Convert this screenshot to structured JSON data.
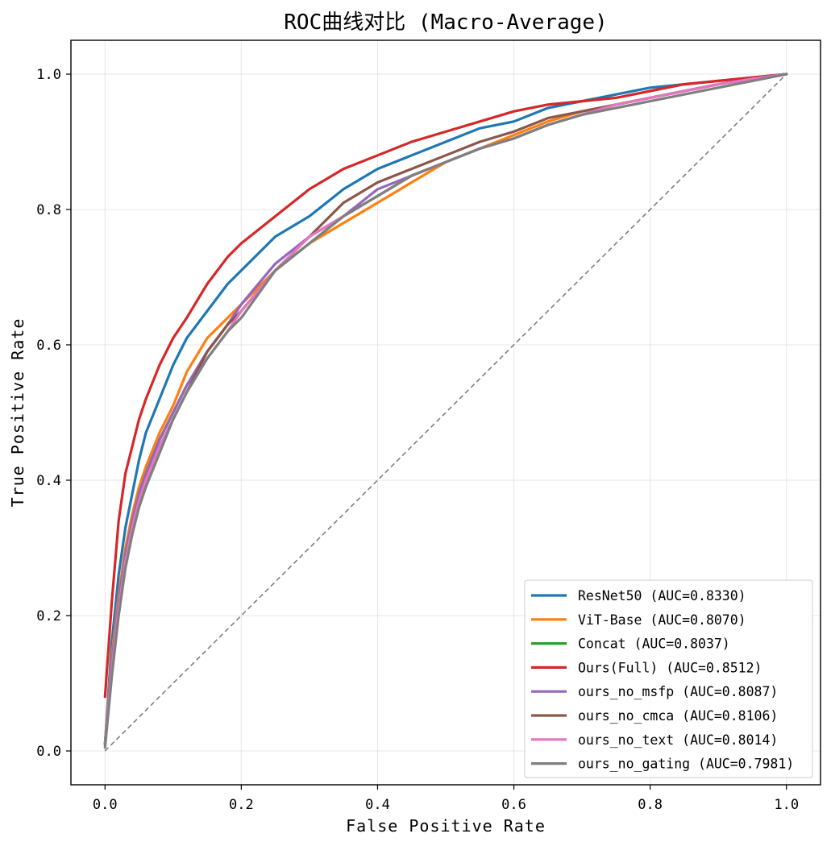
{
  "chart_data": {
    "type": "line",
    "title": "ROC曲线对比 (Macro-Average)",
    "xlabel": "False Positive Rate",
    "ylabel": "True Positive Rate",
    "xlim": [
      -0.05,
      1.05
    ],
    "ylim": [
      -0.05,
      1.05
    ],
    "xticks": [
      "0.0",
      "0.2",
      "0.4",
      "0.6",
      "0.8",
      "1.0"
    ],
    "yticks": [
      "0.0",
      "0.2",
      "0.4",
      "0.6",
      "0.8",
      "1.0"
    ],
    "grid": true,
    "legend_position": "lower-right",
    "diagonal": {
      "x": [
        0,
        1
      ],
      "y": [
        0,
        1
      ],
      "color": "#7f7f7f",
      "style": "dashed"
    },
    "series": [
      {
        "name": "ResNet50 (AUC=0.8330)",
        "color": "#1f77b4",
        "x": [
          0,
          0.01,
          0.02,
          0.03,
          0.04,
          0.05,
          0.06,
          0.08,
          0.1,
          0.12,
          0.15,
          0.18,
          0.2,
          0.25,
          0.3,
          0.35,
          0.4,
          0.45,
          0.5,
          0.55,
          0.6,
          0.65,
          0.7,
          0.75,
          0.8,
          0.85,
          0.9,
          0.95,
          1.0
        ],
        "y": [
          0.01,
          0.16,
          0.26,
          0.33,
          0.38,
          0.43,
          0.47,
          0.52,
          0.57,
          0.61,
          0.65,
          0.69,
          0.71,
          0.76,
          0.79,
          0.83,
          0.86,
          0.88,
          0.9,
          0.92,
          0.93,
          0.95,
          0.96,
          0.97,
          0.98,
          0.985,
          0.99,
          0.995,
          1.0
        ]
      },
      {
        "name": "ViT-Base (AUC=0.8070)",
        "color": "#ff7f0e",
        "x": [
          0,
          0.01,
          0.02,
          0.03,
          0.04,
          0.05,
          0.06,
          0.08,
          0.1,
          0.12,
          0.15,
          0.18,
          0.2,
          0.25,
          0.3,
          0.35,
          0.4,
          0.45,
          0.5,
          0.55,
          0.6,
          0.65,
          0.7,
          0.75,
          0.8,
          0.85,
          0.9,
          0.95,
          1.0
        ],
        "y": [
          0.01,
          0.14,
          0.23,
          0.3,
          0.35,
          0.39,
          0.42,
          0.47,
          0.51,
          0.56,
          0.61,
          0.64,
          0.66,
          0.71,
          0.75,
          0.78,
          0.81,
          0.84,
          0.87,
          0.89,
          0.91,
          0.93,
          0.945,
          0.955,
          0.965,
          0.975,
          0.985,
          0.993,
          1.0
        ]
      },
      {
        "name": "Concat (AUC=0.8037)",
        "color": "#2ca02c",
        "x": [
          0,
          0.01,
          0.02,
          0.03,
          0.04,
          0.05,
          0.06,
          0.08,
          0.1,
          0.12,
          0.15,
          0.18,
          0.2,
          0.25,
          0.3,
          0.35,
          0.4,
          0.45,
          0.5,
          0.55,
          0.6,
          0.65,
          0.7,
          0.75,
          0.8,
          0.85,
          0.9,
          0.95,
          1.0
        ],
        "y": [
          0.01,
          0.13,
          0.22,
          0.29,
          0.34,
          0.38,
          0.41,
          0.46,
          0.5,
          0.54,
          0.59,
          0.63,
          0.65,
          0.71,
          0.75,
          0.79,
          0.82,
          0.85,
          0.87,
          0.89,
          0.905,
          0.925,
          0.94,
          0.955,
          0.965,
          0.975,
          0.985,
          0.993,
          1.0
        ]
      },
      {
        "name": "Ours(Full) (AUC=0.8512)",
        "color": "#d62728",
        "x": [
          0,
          0.005,
          0.01,
          0.02,
          0.03,
          0.04,
          0.05,
          0.06,
          0.08,
          0.1,
          0.12,
          0.15,
          0.18,
          0.2,
          0.25,
          0.3,
          0.35,
          0.4,
          0.45,
          0.5,
          0.55,
          0.6,
          0.65,
          0.7,
          0.75,
          0.8,
          0.85,
          0.9,
          0.95,
          1.0
        ],
        "y": [
          0.08,
          0.15,
          0.22,
          0.34,
          0.41,
          0.45,
          0.49,
          0.52,
          0.57,
          0.61,
          0.64,
          0.69,
          0.73,
          0.75,
          0.79,
          0.83,
          0.86,
          0.88,
          0.9,
          0.915,
          0.93,
          0.945,
          0.955,
          0.96,
          0.965,
          0.975,
          0.985,
          0.99,
          0.995,
          1.0
        ]
      },
      {
        "name": "ours_no_msfp (AUC=0.8087)",
        "color": "#9467bd",
        "x": [
          0,
          0.01,
          0.02,
          0.03,
          0.04,
          0.05,
          0.06,
          0.08,
          0.1,
          0.12,
          0.15,
          0.18,
          0.2,
          0.25,
          0.3,
          0.35,
          0.4,
          0.45,
          0.5,
          0.55,
          0.6,
          0.65,
          0.7,
          0.75,
          0.8,
          0.85,
          0.9,
          0.95,
          1.0
        ],
        "y": [
          0.01,
          0.13,
          0.22,
          0.29,
          0.34,
          0.38,
          0.41,
          0.46,
          0.5,
          0.54,
          0.59,
          0.63,
          0.66,
          0.72,
          0.76,
          0.79,
          0.83,
          0.85,
          0.87,
          0.89,
          0.905,
          0.925,
          0.94,
          0.955,
          0.965,
          0.975,
          0.985,
          0.993,
          1.0
        ]
      },
      {
        "name": "ours_no_cmca (AUC=0.8106)",
        "color": "#8c564b",
        "x": [
          0,
          0.01,
          0.02,
          0.03,
          0.04,
          0.05,
          0.06,
          0.08,
          0.1,
          0.12,
          0.15,
          0.18,
          0.2,
          0.25,
          0.3,
          0.35,
          0.4,
          0.45,
          0.5,
          0.55,
          0.6,
          0.65,
          0.7,
          0.75,
          0.8,
          0.85,
          0.9,
          0.95,
          1.0
        ],
        "y": [
          0.01,
          0.12,
          0.21,
          0.28,
          0.33,
          0.37,
          0.4,
          0.45,
          0.49,
          0.53,
          0.59,
          0.63,
          0.65,
          0.71,
          0.76,
          0.81,
          0.84,
          0.86,
          0.88,
          0.9,
          0.915,
          0.935,
          0.945,
          0.955,
          0.965,
          0.975,
          0.985,
          0.993,
          1.0
        ]
      },
      {
        "name": "ours_no_text (AUC=0.8014)",
        "color": "#e377c2",
        "x": [
          0,
          0.01,
          0.02,
          0.03,
          0.04,
          0.05,
          0.06,
          0.08,
          0.1,
          0.12,
          0.15,
          0.18,
          0.2,
          0.25,
          0.3,
          0.35,
          0.4,
          0.45,
          0.5,
          0.55,
          0.6,
          0.65,
          0.7,
          0.75,
          0.8,
          0.85,
          0.9,
          0.95,
          1.0
        ],
        "y": [
          0.01,
          0.12,
          0.21,
          0.28,
          0.33,
          0.37,
          0.4,
          0.45,
          0.49,
          0.53,
          0.58,
          0.62,
          0.65,
          0.71,
          0.76,
          0.79,
          0.82,
          0.85,
          0.87,
          0.89,
          0.905,
          0.925,
          0.94,
          0.955,
          0.965,
          0.975,
          0.985,
          0.993,
          1.0
        ]
      },
      {
        "name": "ours_no_gating (AUC=0.7981)",
        "color": "#7f7f7f",
        "x": [
          0,
          0.01,
          0.02,
          0.03,
          0.04,
          0.05,
          0.06,
          0.08,
          0.1,
          0.12,
          0.15,
          0.18,
          0.2,
          0.25,
          0.3,
          0.35,
          0.4,
          0.45,
          0.5,
          0.55,
          0.6,
          0.65,
          0.7,
          0.75,
          0.8,
          0.85,
          0.9,
          0.95,
          1.0
        ],
        "y": [
          0.005,
          0.11,
          0.2,
          0.27,
          0.32,
          0.36,
          0.39,
          0.44,
          0.49,
          0.53,
          0.58,
          0.62,
          0.64,
          0.71,
          0.75,
          0.79,
          0.82,
          0.85,
          0.87,
          0.89,
          0.905,
          0.925,
          0.94,
          0.95,
          0.96,
          0.97,
          0.98,
          0.99,
          1.0
        ]
      }
    ]
  }
}
